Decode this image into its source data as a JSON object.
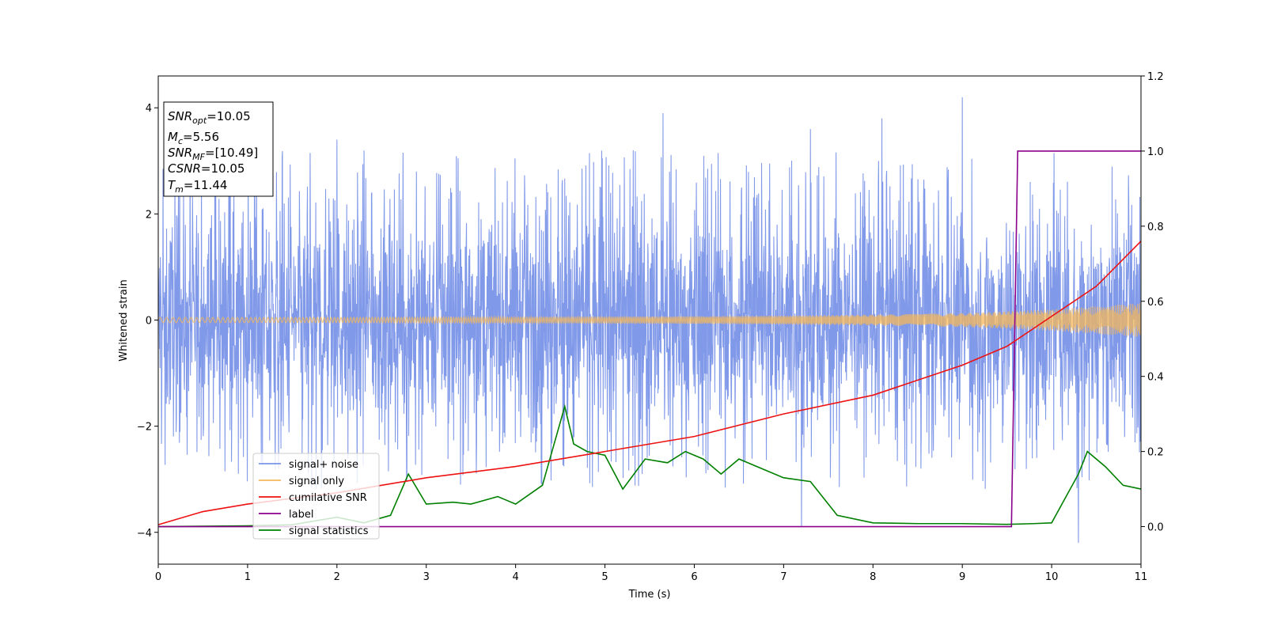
{
  "chart_data": {
    "type": "line",
    "xlabel": "Time (s)",
    "ylabel": "Whitened strain",
    "xlim": [
      0,
      11
    ],
    "ylim": [
      -4.6,
      4.6
    ],
    "y2lim": [
      -0.1,
      1.2
    ],
    "x_ticks": [
      "0",
      "1",
      "2",
      "3",
      "4",
      "5",
      "6",
      "7",
      "8",
      "9",
      "10",
      "11"
    ],
    "y_ticks": [
      "−4",
      "−2",
      "0",
      "2",
      "4"
    ],
    "y2_ticks": [
      "0.0",
      "0.2",
      "0.4",
      "0.6",
      "0.8",
      "1.0",
      "1.2"
    ],
    "legend_position": "lower-left",
    "info_box": {
      "snr_opt": {
        "base": "SNR",
        "sub": "opt",
        "value": "=10.05"
      },
      "mc": {
        "base": "M",
        "sub": "c",
        "value": "=5.56"
      },
      "snr_mf": {
        "base": "SNR",
        "sub": "MF",
        "value": "=[10.49]"
      },
      "csnr": {
        "base": "CSNR",
        "sub": "",
        "value": "=10.05"
      },
      "tm": {
        "base": "T",
        "sub": "m",
        "value": "=11.44"
      }
    },
    "series": [
      {
        "name": "signal+ noise",
        "axis": "left",
        "color": "#7a94e8",
        "description_envelope": {
          "typical_amplitude": 2.0,
          "spikes": [
            [
              1.1,
              3.2
            ],
            [
              2.0,
              3.4
            ],
            [
              5.65,
              3.9
            ],
            [
              7.3,
              3.6
            ],
            [
              8.1,
              3.8
            ],
            [
              9.0,
              4.2
            ],
            [
              10.3,
              -4.2
            ],
            [
              7.2,
              -3.9
            ]
          ]
        }
      },
      {
        "name": "signal only",
        "axis": "left",
        "color": "#f5b85a",
        "amplitude_points": [
          [
            0,
            0.05
          ],
          [
            2,
            0.05
          ],
          [
            4,
            0.06
          ],
          [
            6,
            0.07
          ],
          [
            8,
            0.1
          ],
          [
            9,
            0.13
          ],
          [
            10,
            0.2
          ],
          [
            10.5,
            0.26
          ],
          [
            11,
            0.32
          ]
        ]
      },
      {
        "name": "cumilative SNR",
        "axis": "right",
        "color": "#ee1111",
        "points": [
          [
            0,
            0.005
          ],
          [
            0.5,
            0.04
          ],
          [
            1,
            0.06
          ],
          [
            2,
            0.09
          ],
          [
            3,
            0.13
          ],
          [
            4,
            0.16
          ],
          [
            5,
            0.2
          ],
          [
            6,
            0.24
          ],
          [
            7,
            0.3
          ],
          [
            8,
            0.35
          ],
          [
            9,
            0.43
          ],
          [
            9.5,
            0.48
          ],
          [
            10,
            0.56
          ],
          [
            10.5,
            0.64
          ],
          [
            11,
            0.76
          ]
        ]
      },
      {
        "name": "label",
        "axis": "right",
        "color": "#8b008b",
        "points": [
          [
            0,
            0.0
          ],
          [
            9.55,
            0.0
          ],
          [
            9.62,
            1.0
          ],
          [
            11,
            1.0
          ]
        ]
      },
      {
        "name": "signal statistics",
        "axis": "right",
        "color": "#008000",
        "points": [
          [
            0,
            0.0
          ],
          [
            0.5,
            0.001
          ],
          [
            1.0,
            0.002
          ],
          [
            1.5,
            0.005
          ],
          [
            2.0,
            0.025
          ],
          [
            2.3,
            0.01
          ],
          [
            2.6,
            0.03
          ],
          [
            2.8,
            0.14
          ],
          [
            3.0,
            0.06
          ],
          [
            3.3,
            0.065
          ],
          [
            3.5,
            0.06
          ],
          [
            3.8,
            0.08
          ],
          [
            4.0,
            0.06
          ],
          [
            4.3,
            0.11
          ],
          [
            4.55,
            0.32
          ],
          [
            4.65,
            0.22
          ],
          [
            4.8,
            0.2
          ],
          [
            5.0,
            0.19
          ],
          [
            5.2,
            0.1
          ],
          [
            5.45,
            0.18
          ],
          [
            5.7,
            0.17
          ],
          [
            5.9,
            0.2
          ],
          [
            6.1,
            0.18
          ],
          [
            6.3,
            0.14
          ],
          [
            6.5,
            0.18
          ],
          [
            6.8,
            0.15
          ],
          [
            7.0,
            0.13
          ],
          [
            7.3,
            0.12
          ],
          [
            7.6,
            0.03
          ],
          [
            8.0,
            0.01
          ],
          [
            8.5,
            0.008
          ],
          [
            9.0,
            0.008
          ],
          [
            9.5,
            0.006
          ],
          [
            9.8,
            0.008
          ],
          [
            10.0,
            0.01
          ],
          [
            10.3,
            0.14
          ],
          [
            10.4,
            0.2
          ],
          [
            10.6,
            0.16
          ],
          [
            10.8,
            0.11
          ],
          [
            11.0,
            0.1
          ]
        ]
      }
    ]
  }
}
